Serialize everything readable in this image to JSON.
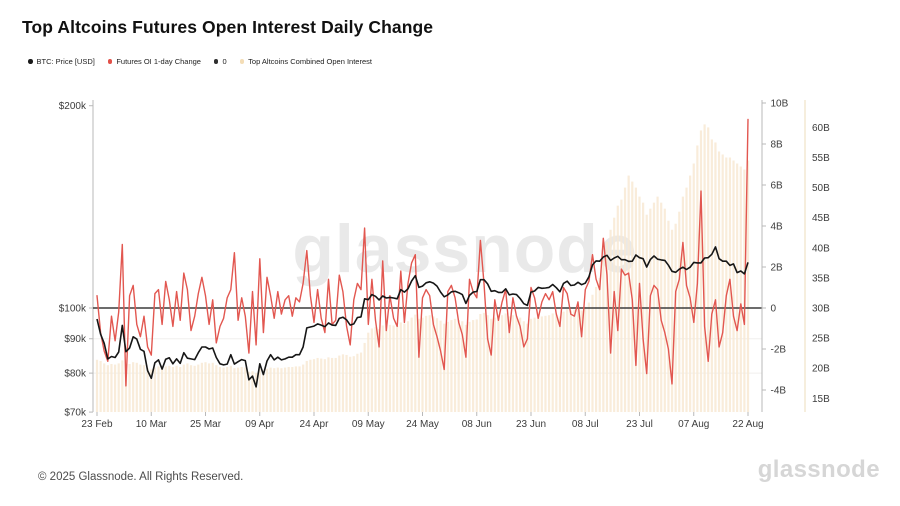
{
  "title": "Top Altcoins Futures Open Interest Daily Change",
  "watermark": "glassnode",
  "footer": {
    "copyright": "© 2025 Glassnode. All Rights Reserved.",
    "logo": "glassnode"
  },
  "legend": {
    "items": [
      {
        "label": "BTC: Price [USD]",
        "color": "#1a1a1a"
      },
      {
        "label": "Futures OI 1-day Change",
        "color": "#e25048"
      },
      {
        "label": "0",
        "color": "#2f2f2f"
      },
      {
        "label": "Top Altcoins Combined Open Interest",
        "color": "#f4ddb6"
      }
    ]
  },
  "chart_data": {
    "type": "mixed",
    "title": "Top Altcoins Futures Open Interest Daily Change",
    "x": {
      "start": "23 Feb",
      "end": "22 Aug",
      "tick_labels": [
        "23 Feb",
        "10 Mar",
        "25 Mar",
        "09 Apr",
        "24 Apr",
        "09 May",
        "24 May",
        "08 Jun",
        "23 Jun",
        "08 Jul",
        "23 Jul",
        "07 Aug",
        "22 Aug"
      ],
      "tick_indices": [
        0,
        15,
        30,
        45,
        60,
        75,
        90,
        105,
        120,
        135,
        150,
        165,
        180
      ]
    },
    "axes": {
      "price_left": {
        "scale": "log",
        "unit": "USD",
        "labels": [
          "$200k",
          "$100k",
          "$90k",
          "$80k",
          "$70k"
        ],
        "values": [
          200,
          100,
          90,
          80,
          70
        ]
      },
      "oi_change_right": {
        "scale": "linear",
        "unit": "USD",
        "labels": [
          "10B",
          "8B",
          "6B",
          "4B",
          "2B",
          "0",
          "-2B",
          "-4B"
        ],
        "values": [
          10,
          8,
          6,
          4,
          2,
          0,
          -2,
          -4
        ]
      },
      "oi_total_far_right": {
        "scale": "linear",
        "unit": "USD",
        "labels": [
          "60B",
          "55B",
          "50B",
          "45B",
          "40B",
          "35B",
          "30B",
          "25B",
          "20B",
          "15B"
        ],
        "values": [
          60,
          55,
          50,
          45,
          40,
          35,
          30,
          25,
          20,
          15
        ]
      }
    },
    "series": [
      {
        "name": "BTC: Price [USD]",
        "type": "line",
        "axis": "price_left",
        "color": "#161616",
        "unit": "thousand USD",
        "values": [
          96.3,
          91.4,
          88.6,
          84.0,
          84.7,
          84.4,
          86.0,
          94.2,
          86.1,
          87.2,
          90.6,
          89.9,
          86.8,
          86.2,
          80.7,
          78.6,
          82.9,
          83.7,
          81.1,
          83.9,
          84.3,
          82.6,
          84.0,
          82.7,
          85.8,
          84.2,
          84.0,
          83.8,
          85.8,
          87.5,
          87.5,
          86.9,
          87.2,
          84.4,
          82.6,
          82.3,
          82.5,
          85.2,
          82.5,
          83.2,
          83.8,
          83.5,
          78.2,
          79.2,
          76.3,
          82.6,
          79.6,
          83.4,
          85.2,
          83.7,
          84.5,
          83.7,
          84.0,
          84.5,
          84.5,
          85.2,
          85.2,
          87.5,
          93.4,
          93.7,
          94.0,
          94.7,
          94.3,
          93.8,
          95.0,
          94.3,
          94.2,
          96.5,
          96.9,
          96.0,
          94.3,
          94.7,
          96.8,
          97.0,
          103.2,
          102.9,
          104.7,
          104.1,
          102.8,
          104.2,
          103.5,
          103.7,
          103.5,
          103.2,
          106.5,
          105.6,
          106.8,
          109.7,
          111.7,
          107.3,
          107.8,
          109.0,
          109.4,
          108.9,
          107.8,
          105.6,
          103.9,
          104.6,
          105.7,
          105.9,
          105.4,
          104.7,
          101.6,
          104.4,
          105.6,
          105.8,
          110.2,
          110.2,
          108.6,
          105.9,
          106.1,
          105.5,
          105.5,
          106.8,
          104.6,
          104.9,
          104.7,
          103.3,
          101.5,
          100.9,
          105.6,
          106.0,
          107.3,
          107.0,
          107.1,
          107.3,
          108.4,
          107.2,
          105.7,
          108.8,
          109.6,
          108.0,
          108.2,
          109.2,
          108.3,
          108.9,
          111.3,
          115.9,
          117.5,
          117.4,
          119.1,
          119.8,
          117.7,
          118.7,
          119.4,
          118.0,
          118.0,
          117.3,
          117.4,
          119.9,
          118.8,
          118.4,
          115.1,
          118.1,
          119.5,
          118.2,
          117.9,
          117.7,
          115.8,
          113.4,
          113.0,
          114.2,
          115.0,
          114.1,
          115.0,
          116.9,
          116.7,
          116.7,
          118.7,
          118.8,
          120.2,
          123.3,
          118.4,
          117.4,
          117.4,
          115.7,
          116.3,
          112.9,
          113.5,
          112.4,
          116.9
        ]
      },
      {
        "name": "Futures OI 1-day Change",
        "type": "line",
        "axis": "oi_change_right",
        "color": "#e25750",
        "unit": "billion USD",
        "values": [
          0.6,
          -1.2,
          -2.1,
          -2.6,
          -0.4,
          -1.6,
          -0.2,
          3.1,
          -3.8,
          0.6,
          1.1,
          -0.8,
          -1.4,
          -0.4,
          -1.9,
          -2.3,
          0.7,
          0.9,
          -0.8,
          1.3,
          0.4,
          -0.9,
          0.8,
          -0.6,
          1.7,
          0.9,
          -1.1,
          -0.4,
          0.7,
          1.5,
          0.6,
          -0.8,
          0.4,
          -1.7,
          -0.9,
          -0.5,
          0.5,
          0.9,
          2.7,
          -0.6,
          0.5,
          -0.4,
          -2.2,
          0.8,
          -1.8,
          2.4,
          -1.2,
          1.5,
          0.6,
          -0.5,
          0.8,
          -0.3,
          0.4,
          0.6,
          -0.4,
          0.5,
          0.3,
          1.2,
          2.8,
          0.6,
          -0.7,
          0.9,
          -0.5,
          -1.2,
          1.4,
          -0.8,
          -0.6,
          1.6,
          0.8,
          -0.9,
          -1.8,
          0.4,
          1.2,
          0.9,
          3.9,
          -0.8,
          1.4,
          -0.6,
          -1.9,
          2.3,
          -1.1,
          0.6,
          -0.5,
          -0.9,
          1.8,
          -0.7,
          1.2,
          2.2,
          2.6,
          -2.4,
          0.5,
          0.9,
          0.6,
          -0.8,
          -1.4,
          -2.1,
          -3.0,
          0.8,
          1.1,
          0.5,
          -0.7,
          -1.3,
          -2.4,
          1.4,
          0.8,
          0.5,
          3.3,
          1.2,
          -1.5,
          -2.3,
          0.4,
          -0.6,
          0.3,
          0.9,
          -1.2,
          0.5,
          -0.4,
          -0.9,
          -1.9,
          -1.5,
          1.0,
          0.5,
          -0.5,
          0.3,
          0.7,
          0.4,
          0.8,
          -0.3,
          -0.9,
          1.0,
          0.7,
          -0.3,
          -0.4,
          0.3,
          -1.4,
          0.9,
          1.3,
          2.6,
          1.4,
          0.9,
          3.4,
          1.6,
          -2.2,
          0.8,
          -1.1,
          1.9,
          1.6,
          1.7,
          0.4,
          -2.8,
          1.2,
          -1.5,
          -3.2,
          0.6,
          1.1,
          0.9,
          -0.6,
          -1.2,
          -2.0,
          -3.7,
          0.8,
          1.4,
          3.2,
          1.1,
          0.5,
          -0.7,
          1.2,
          5.7,
          -0.9,
          -2.6,
          -0.3,
          0.4,
          -1.9,
          -1.2,
          0.6,
          1.4,
          -0.4,
          -1.1,
          0.2,
          -0.8,
          9.2
        ]
      },
      {
        "name": "0",
        "type": "reference-line",
        "axis": "oi_change_right",
        "color": "#3c3c3c",
        "value": 0
      },
      {
        "name": "Top Altcoins Combined Open Interest",
        "type": "bar",
        "axis": "oi_total_far_right",
        "color": "#f8e9d3",
        "unit": "billion USD",
        "values": [
          21.4,
          21.2,
          20.8,
          20.5,
          20.7,
          20.6,
          20.8,
          21.3,
          20.6,
          20.7,
          21.0,
          20.9,
          20.6,
          20.5,
          20.0,
          19.8,
          20.1,
          20.3,
          20.0,
          20.3,
          20.4,
          20.2,
          20.4,
          20.2,
          20.6,
          20.8,
          20.5,
          20.4,
          20.6,
          20.9,
          21.0,
          20.8,
          20.9,
          20.5,
          20.2,
          20.1,
          20.2,
          20.4,
          20.0,
          20.1,
          20.2,
          20.1,
          19.4,
          19.5,
          19.2,
          19.8,
          19.5,
          19.9,
          20.1,
          20.0,
          20.1,
          20.0,
          20.1,
          20.2,
          20.2,
          20.3,
          20.3,
          20.6,
          21.2,
          21.4,
          21.5,
          21.7,
          21.6,
          21.5,
          21.8,
          21.7,
          21.7,
          22.1,
          22.3,
          22.2,
          21.9,
          22.0,
          22.4,
          22.6,
          24.2,
          25.9,
          26.6,
          26.8,
          26.5,
          27.1,
          27.0,
          27.2,
          27.1,
          27.0,
          27.6,
          27.4,
          27.8,
          28.4,
          28.9,
          28.2,
          28.4,
          28.7,
          28.8,
          28.6,
          28.3,
          27.9,
          27.4,
          27.7,
          28.0,
          28.2,
          28.0,
          27.8,
          27.2,
          27.7,
          28.0,
          28.1,
          29.0,
          29.2,
          28.8,
          28.2,
          28.4,
          28.9,
          28.8,
          29.1,
          28.6,
          28.8,
          28.7,
          28.4,
          27.8,
          27.4,
          28.2,
          28.4,
          28.7,
          28.6,
          28.7,
          28.8,
          29.1,
          28.9,
          28.6,
          29.4,
          29.8,
          29.6,
          29.7,
          30.0,
          29.6,
          30.2,
          30.9,
          32.2,
          33.5,
          35.0,
          38.0,
          41.0,
          43.0,
          45.0,
          47.0,
          48.0,
          50.0,
          52.0,
          51.0,
          50.0,
          48.5,
          47.5,
          45.5,
          46.5,
          47.5,
          48.5,
          47.5,
          46.5,
          44.5,
          43.0,
          44.0,
          46.0,
          48.5,
          50.0,
          52.0,
          54.0,
          57.0,
          59.5,
          60.5,
          60.0,
          58.0,
          57.5,
          56.0,
          55.5,
          55.0,
          55.0,
          54.5,
          54.0,
          53.5,
          53.0,
          54.5
        ]
      }
    ]
  }
}
